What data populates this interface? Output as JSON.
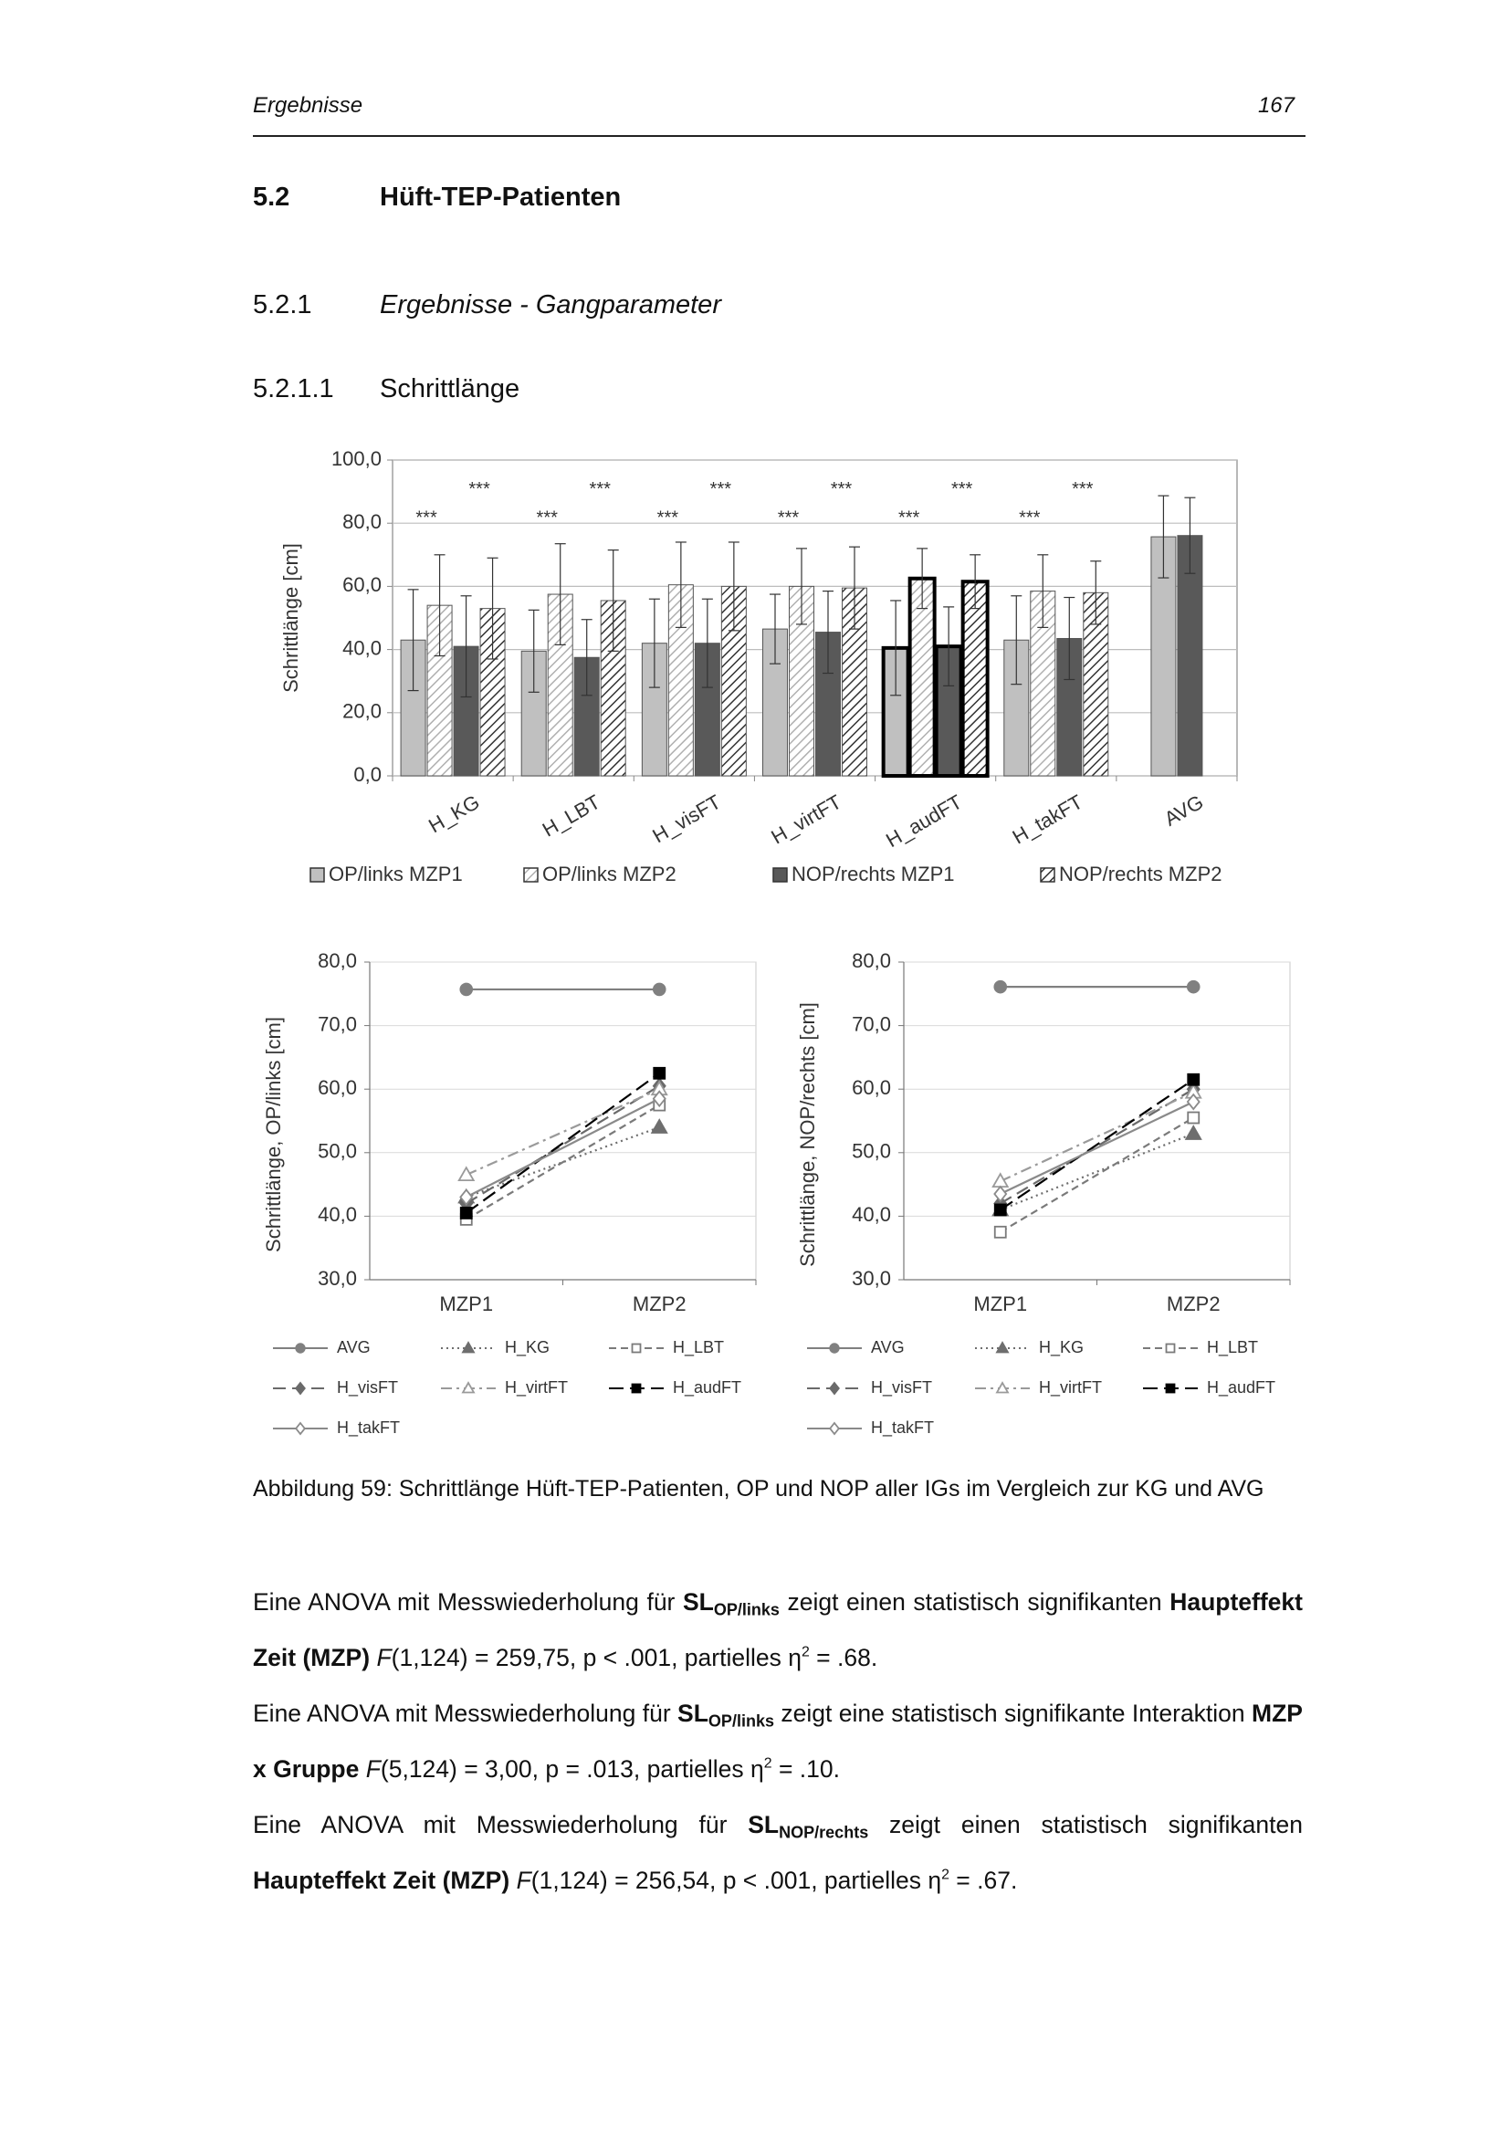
{
  "header": {
    "left": "Ergebnisse",
    "right": "167"
  },
  "sections": [
    {
      "number": "5.2",
      "title": "Hüft-TEP-Patienten"
    },
    {
      "number": "5.2.1",
      "title": "Ergebnisse - Gangparameter"
    },
    {
      "number": "5.2.1.1",
      "title": "Schrittlänge"
    }
  ],
  "chart_data": [
    {
      "type": "bar",
      "y_label": "Schrittlänge [cm]",
      "categories": [
        "H_KG",
        "H_LBT",
        "H_visFT",
        "H_virtFT",
        "H_audFT",
        "H_takFT",
        "AVG"
      ],
      "series": [
        {
          "name": "OP/links MZP1",
          "color": "#c0c0c0",
          "pattern": "solid",
          "values": [
            43,
            39.5,
            42,
            46.5,
            40.5,
            43,
            75.7
          ],
          "errors": [
            16,
            13,
            14,
            11,
            15,
            14,
            13
          ]
        },
        {
          "name": "OP/links MZP2",
          "color": "#b0b0b0",
          "pattern": "hatch",
          "values": [
            54,
            57.5,
            60.5,
            60,
            62.5,
            58.5,
            null
          ],
          "errors": [
            16,
            16,
            13.5,
            12,
            9.5,
            11.5,
            null
          ]
        },
        {
          "name": "NOP/rechts MZP1",
          "color": "#595959",
          "pattern": "solid",
          "values": [
            41,
            37.5,
            42,
            45.5,
            41,
            43.5,
            76.1
          ],
          "errors": [
            16,
            12,
            14,
            13,
            12.5,
            13,
            12
          ]
        },
        {
          "name": "NOP/rechts MZP2",
          "color": "#333333",
          "pattern": "hatch",
          "values": [
            53,
            55.5,
            60,
            59.5,
            61.5,
            58,
            null
          ],
          "errors": [
            16,
            16,
            14,
            13,
            8.5,
            10,
            null
          ]
        }
      ],
      "significance": {
        "lower": [
          "***",
          "***",
          "***",
          "***",
          "***",
          "***"
        ],
        "upper": [
          "***",
          "***",
          "***",
          "***",
          "***",
          "***"
        ]
      },
      "highlight_category": 4,
      "ylim": [
        0,
        100
      ],
      "yticks": [
        {
          "value": 0,
          "label": "0,0"
        },
        {
          "value": 20,
          "label": "20,0"
        },
        {
          "value": 40,
          "label": "40,0"
        },
        {
          "value": 60,
          "label": "60,0"
        },
        {
          "value": 80,
          "label": "80,0"
        },
        {
          "value": 100,
          "label": "100,0"
        }
      ],
      "grid": true
    },
    {
      "type": "line",
      "y_label": "Schrittlänge, OP/links [cm]",
      "categories": [
        "MZP1",
        "MZP2"
      ],
      "series": [
        {
          "name": "AVG",
          "color": "#808080",
          "dash": "none",
          "marker": "circle",
          "filled": true,
          "values": [
            75.7,
            75.7
          ]
        },
        {
          "name": "H_KG",
          "color": "#6e6e6e",
          "dash": "2,4",
          "marker": "triangle",
          "filled": true,
          "values": [
            43,
            54
          ]
        },
        {
          "name": "H_LBT",
          "color": "#7a7a7a",
          "dash": "8,5",
          "marker": "square",
          "filled": false,
          "values": [
            39.5,
            57.5
          ]
        },
        {
          "name": "H_visFT",
          "color": "#6a6a6a",
          "dash": "14,7",
          "marker": "diamond",
          "filled": true,
          "values": [
            42,
            60.5
          ]
        },
        {
          "name": "H_virtFT",
          "color": "#9a9a9a",
          "dash": "12,5,3,5",
          "marker": "triangle",
          "filled": false,
          "values": [
            46.5,
            60
          ]
        },
        {
          "name": "H_audFT",
          "color": "#000000",
          "dash": "16,7",
          "marker": "square",
          "filled": true,
          "values": [
            40.5,
            62.5
          ]
        },
        {
          "name": "H_takFT",
          "color": "#8a8a8a",
          "dash": "none",
          "marker": "diamond",
          "filled": false,
          "values": [
            43,
            58.5
          ]
        }
      ],
      "ylim": [
        30,
        80
      ],
      "yticks": [
        {
          "value": 30,
          "label": "30,0"
        },
        {
          "value": 40,
          "label": "40,0"
        },
        {
          "value": 50,
          "label": "50,0"
        },
        {
          "value": 60,
          "label": "60,0"
        },
        {
          "value": 70,
          "label": "70,0"
        },
        {
          "value": 80,
          "label": "80,0"
        }
      ],
      "grid": true
    },
    {
      "type": "line",
      "y_label": "Schrittlänge, NOP/rechts [cm]",
      "categories": [
        "MZP1",
        "MZP2"
      ],
      "series": [
        {
          "name": "AVG",
          "color": "#808080",
          "dash": "none",
          "marker": "circle",
          "filled": true,
          "values": [
            76.1,
            76.1
          ]
        },
        {
          "name": "H_KG",
          "color": "#6e6e6e",
          "dash": "2,4",
          "marker": "triangle",
          "filled": true,
          "values": [
            41,
            53
          ]
        },
        {
          "name": "H_LBT",
          "color": "#7a7a7a",
          "dash": "8,5",
          "marker": "square",
          "filled": false,
          "values": [
            37.5,
            55.5
          ]
        },
        {
          "name": "H_visFT",
          "color": "#6a6a6a",
          "dash": "14,7",
          "marker": "diamond",
          "filled": true,
          "values": [
            42,
            60
          ]
        },
        {
          "name": "H_virtFT",
          "color": "#9a9a9a",
          "dash": "12,5,3,5",
          "marker": "triangle",
          "filled": false,
          "values": [
            45.5,
            59.5
          ]
        },
        {
          "name": "H_audFT",
          "color": "#000000",
          "dash": "16,7",
          "marker": "square",
          "filled": true,
          "values": [
            41,
            61.5
          ]
        },
        {
          "name": "H_takFT",
          "color": "#8a8a8a",
          "dash": "none",
          "marker": "diamond",
          "filled": false,
          "values": [
            43.5,
            58
          ]
        }
      ],
      "ylim": [
        30,
        80
      ],
      "yticks": [
        {
          "value": 30,
          "label": "30,0"
        },
        {
          "value": 40,
          "label": "40,0"
        },
        {
          "value": 50,
          "label": "50,0"
        },
        {
          "value": 60,
          "label": "60,0"
        },
        {
          "value": 70,
          "label": "70,0"
        },
        {
          "value": 80,
          "label": "80,0"
        }
      ],
      "grid": true
    }
  ],
  "caption": "Abbildung 59: Schrittlänge Hüft-TEP-Patienten, OP und NOP aller IGs im Vergleich zur KG und AVG",
  "paragraphs": [
    [
      {
        "t": "Eine ANOVA mit Messwiederholung für "
      },
      {
        "t": "SL",
        "s": "b"
      },
      {
        "t": "OP/links",
        "s": "bsub"
      },
      {
        "t": " zeigt einen statistisch signifikanten "
      },
      {
        "t": "Haupteffekt Zeit (MZP)",
        "s": "b"
      },
      {
        "t": " "
      },
      {
        "t": "F",
        "s": "i"
      },
      {
        "t": "(1,124) = 259,75, p < .001, partielles η"
      },
      {
        "t": "2",
        "s": "sup"
      },
      {
        "t": " = .68."
      }
    ],
    [
      {
        "t": "Eine ANOVA mit Messwiederholung für "
      },
      {
        "t": "SL",
        "s": "b"
      },
      {
        "t": "OP/links",
        "s": "bsub"
      },
      {
        "t": " zeigt eine statistisch signifikante Interaktion "
      },
      {
        "t": "MZP x Gruppe",
        "s": "b"
      },
      {
        "t": " "
      },
      {
        "t": "F",
        "s": "i"
      },
      {
        "t": "(5,124) = 3,00, p = .013, partielles η"
      },
      {
        "t": "2",
        "s": "sup"
      },
      {
        "t": " = .10."
      }
    ],
    [
      {
        "t": "Eine ANOVA mit Messwiederholung für "
      },
      {
        "t": "SL",
        "s": "b"
      },
      {
        "t": "NOP/rechts",
        "s": "bsub"
      },
      {
        "t": " zeigt einen statistisch signifikan­ten "
      },
      {
        "t": "Haupteffekt Zeit (MZP)",
        "s": "b"
      },
      {
        "t": " "
      },
      {
        "t": "F",
        "s": "i"
      },
      {
        "t": "(1,124) = 256,54, p < .001, partielles η"
      },
      {
        "t": "2",
        "s": "sup"
      },
      {
        "t": " = .67."
      }
    ]
  ]
}
